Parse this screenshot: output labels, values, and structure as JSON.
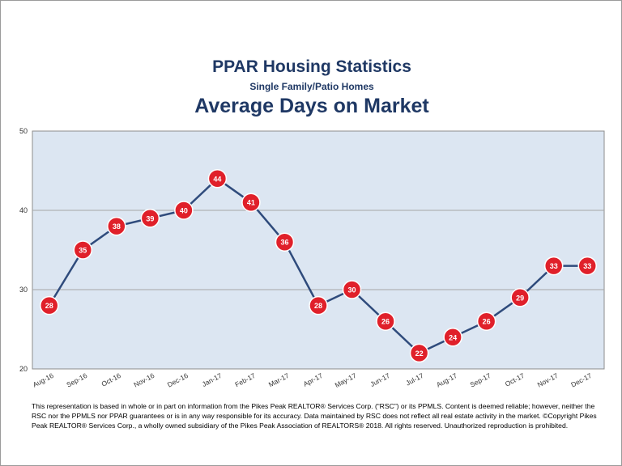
{
  "title": "PPAR Housing Statistics",
  "subtitle": "Single Family/Patio Homes",
  "chart_title": "Average Days on Market",
  "disclaimer": "This representation is based in whole or in part on information from the Pikes Peak REALTOR® Services Corp. (“RSC”) or its PPMLS. Content is deemed reliable; however, neither the RSC nor the PPMLS nor PPAR guarantees or is in any way responsible for its accuracy. Data maintained by RSC does not reflect all real estate activity in the market. ©Copyright Pikes Peak REALTOR® Services Corp., a wholly owned subsidiary of the Pikes Peak Association of REALTORS® 2018. All rights reserved. Unauthorized reproduction is prohibited.",
  "chart_data": {
    "type": "line",
    "title": "Average Days on Market",
    "categories": [
      "Aug-16",
      "Sep-16",
      "Oct-16",
      "Nov-16",
      "Dec-16",
      "Jan-17",
      "Feb-17",
      "Mar-17",
      "Apr-17",
      "May-17",
      "Jun-17",
      "Jul-17",
      "Aug-17",
      "Sep-17",
      "Oct-17",
      "Nov-17",
      "Dec-17"
    ],
    "values": [
      28,
      35,
      38,
      39,
      40,
      44,
      41,
      36,
      28,
      30,
      26,
      22,
      24,
      26,
      29,
      33,
      33
    ],
    "ylim": [
      20,
      50
    ],
    "yticks": [
      20,
      30,
      40,
      50
    ],
    "grid": true,
    "legend": "none",
    "colors": {
      "plot_background": "#dce6f2",
      "gridline": "#a6a6a6",
      "line": "#2f4b7c",
      "marker": "#e0202a",
      "marker_label": "#ffffff"
    }
  }
}
